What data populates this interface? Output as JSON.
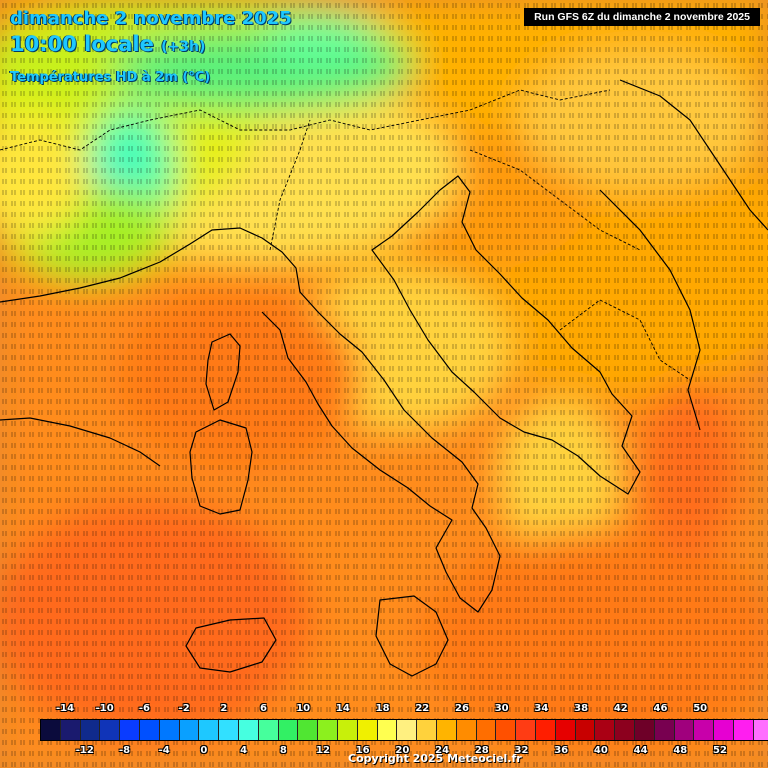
{
  "header": {
    "date_line": "dimanche 2 novembre 2025",
    "time_line": "10:00 locale",
    "time_offset": "(+3h)",
    "product": "Températures HD à 2m (°C)",
    "run": "Run GFS 6Z du dimanche 2 novembre 2025"
  },
  "legend": {
    "top_labels": [
      "-14",
      "-10",
      "-6",
      "-2",
      "2",
      "6",
      "10",
      "14",
      "18",
      "22",
      "26",
      "30",
      "34",
      "38",
      "42",
      "46",
      "50"
    ],
    "bottom_labels": [
      "-12",
      "-8",
      "-4",
      "0",
      "4",
      "8",
      "12",
      "16",
      "20",
      "24",
      "28",
      "32",
      "36",
      "40",
      "44",
      "48",
      "52"
    ],
    "colors": [
      "#0b0b3c",
      "#1a1a6e",
      "#102a8c",
      "#1034b8",
      "#0a3cff",
      "#0050ff",
      "#0078ff",
      "#0aa0ff",
      "#1ec8ff",
      "#32e0ff",
      "#46ffe0",
      "#46ff9c",
      "#32f064",
      "#50e632",
      "#8cf01e",
      "#c8f00a",
      "#f0f000",
      "#ffff50",
      "#fff080",
      "#ffd23c",
      "#ffb400",
      "#ff8c00",
      "#ff6e00",
      "#ff5000",
      "#ff3c14",
      "#ff1e00",
      "#e60000",
      "#c80000",
      "#aa0014",
      "#8c001e",
      "#6e0028",
      "#780050",
      "#a0007d",
      "#c800aa",
      "#e600d2",
      "#ff1ef0",
      "#ff6eff",
      "#ffaaff",
      "#ffffff"
    ]
  },
  "copyright": "Copyright 2025 Meteociel.fr"
}
